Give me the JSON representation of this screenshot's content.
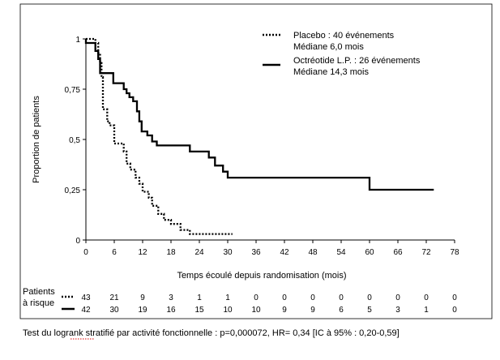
{
  "chart_data": {
    "type": "line",
    "subtype": "kaplan-meier",
    "xlabel": "Temps écoulé depuis randomisation (mois)",
    "ylabel": "Proportion de patients",
    "xlim": [
      0,
      78
    ],
    "ylim": [
      0,
      1
    ],
    "x_ticks": [
      0,
      6,
      12,
      18,
      24,
      30,
      36,
      42,
      48,
      54,
      60,
      66,
      72,
      78
    ],
    "y_ticks": [
      {
        "value": 0,
        "label": "0"
      },
      {
        "value": 0.25,
        "label": "0,25"
      },
      {
        "value": 0.5,
        "label": "0,5"
      },
      {
        "value": 0.75,
        "label": "0,75"
      },
      {
        "value": 1,
        "label": "1"
      }
    ],
    "grid": false,
    "legend_position": "top-right",
    "series": [
      {
        "name": "Placebo : 40 événements",
        "name_line2": "Médiane 6,0 mois",
        "style": "dotted",
        "color": "#000000",
        "points": [
          [
            0,
            1
          ],
          [
            2,
            1
          ],
          [
            2,
            0.98
          ],
          [
            2.6,
            0.98
          ],
          [
            2.6,
            0.93
          ],
          [
            3,
            0.93
          ],
          [
            3,
            0.88
          ],
          [
            3.3,
            0.88
          ],
          [
            3.3,
            0.81
          ],
          [
            3.6,
            0.81
          ],
          [
            3.6,
            0.65
          ],
          [
            4.5,
            0.65
          ],
          [
            4.5,
            0.59
          ],
          [
            5,
            0.59
          ],
          [
            5,
            0.57
          ],
          [
            6,
            0.57
          ],
          [
            6,
            0.48
          ],
          [
            8,
            0.48
          ],
          [
            8,
            0.44
          ],
          [
            8.6,
            0.44
          ],
          [
            8.6,
            0.38
          ],
          [
            9.4,
            0.38
          ],
          [
            9.4,
            0.35
          ],
          [
            10.5,
            0.35
          ],
          [
            10.5,
            0.31
          ],
          [
            11.3,
            0.31
          ],
          [
            11.3,
            0.28
          ],
          [
            12,
            0.28
          ],
          [
            12,
            0.24
          ],
          [
            13.3,
            0.24
          ],
          [
            13.3,
            0.21
          ],
          [
            14,
            0.21
          ],
          [
            14,
            0.17
          ],
          [
            15.3,
            0.17
          ],
          [
            15.3,
            0.13
          ],
          [
            16.5,
            0.13
          ],
          [
            16.5,
            0.1
          ],
          [
            18,
            0.1
          ],
          [
            18,
            0.08
          ],
          [
            20,
            0.08
          ],
          [
            20,
            0.05
          ],
          [
            22,
            0.05
          ],
          [
            22,
            0.03
          ],
          [
            31,
            0.03
          ]
        ]
      },
      {
        "name": "Octréotide L.P. : 26 événements",
        "name_line2": "Médiane 14,3 mois",
        "style": "solid",
        "color": "#000000",
        "points": [
          [
            0,
            1
          ],
          [
            0,
            0.98
          ],
          [
            2,
            0.98
          ],
          [
            2,
            0.94
          ],
          [
            2.6,
            0.94
          ],
          [
            2.6,
            0.9
          ],
          [
            3,
            0.9
          ],
          [
            3,
            0.83
          ],
          [
            5.8,
            0.83
          ],
          [
            5.8,
            0.78
          ],
          [
            8,
            0.78
          ],
          [
            8,
            0.75
          ],
          [
            8.6,
            0.75
          ],
          [
            8.6,
            0.73
          ],
          [
            9.2,
            0.73
          ],
          [
            9.2,
            0.71
          ],
          [
            10,
            0.71
          ],
          [
            10,
            0.69
          ],
          [
            10.8,
            0.69
          ],
          [
            10.8,
            0.64
          ],
          [
            11.3,
            0.64
          ],
          [
            11.3,
            0.59
          ],
          [
            11.8,
            0.59
          ],
          [
            11.8,
            0.54
          ],
          [
            13,
            0.54
          ],
          [
            13,
            0.52
          ],
          [
            14,
            0.52
          ],
          [
            14,
            0.49
          ],
          [
            15,
            0.49
          ],
          [
            15,
            0.47
          ],
          [
            22,
            0.47
          ],
          [
            22,
            0.44
          ],
          [
            26,
            0.44
          ],
          [
            26,
            0.41
          ],
          [
            27.3,
            0.41
          ],
          [
            27.3,
            0.37
          ],
          [
            29,
            0.37
          ],
          [
            29,
            0.34
          ],
          [
            30,
            0.34
          ],
          [
            30,
            0.31
          ],
          [
            60,
            0.31
          ],
          [
            60,
            0.25
          ],
          [
            73.6,
            0.25
          ]
        ]
      }
    ],
    "risk_table": {
      "label_line1": "Patients",
      "label_line2": "à risque",
      "times": [
        0,
        6,
        12,
        18,
        24,
        30,
        36,
        42,
        48,
        54,
        60,
        66,
        72,
        78
      ],
      "rows": [
        {
          "style": "dotted",
          "values": [
            "43",
            "21",
            "9",
            "3",
            "1",
            "1",
            "0",
            "0",
            "0",
            "0",
            "0",
            "0",
            "0",
            "0"
          ]
        },
        {
          "style": "solid",
          "values": [
            "42",
            "30",
            "19",
            "16",
            "15",
            "10",
            "10",
            "9",
            "9",
            "6",
            "5",
            "3",
            "1",
            "0"
          ]
        }
      ]
    }
  },
  "footnote": "Test du logrank stratifié par activité fonctionnelle : p=0,000072, HR= 0,34 [IC à 95% : 0,20-0,59]"
}
